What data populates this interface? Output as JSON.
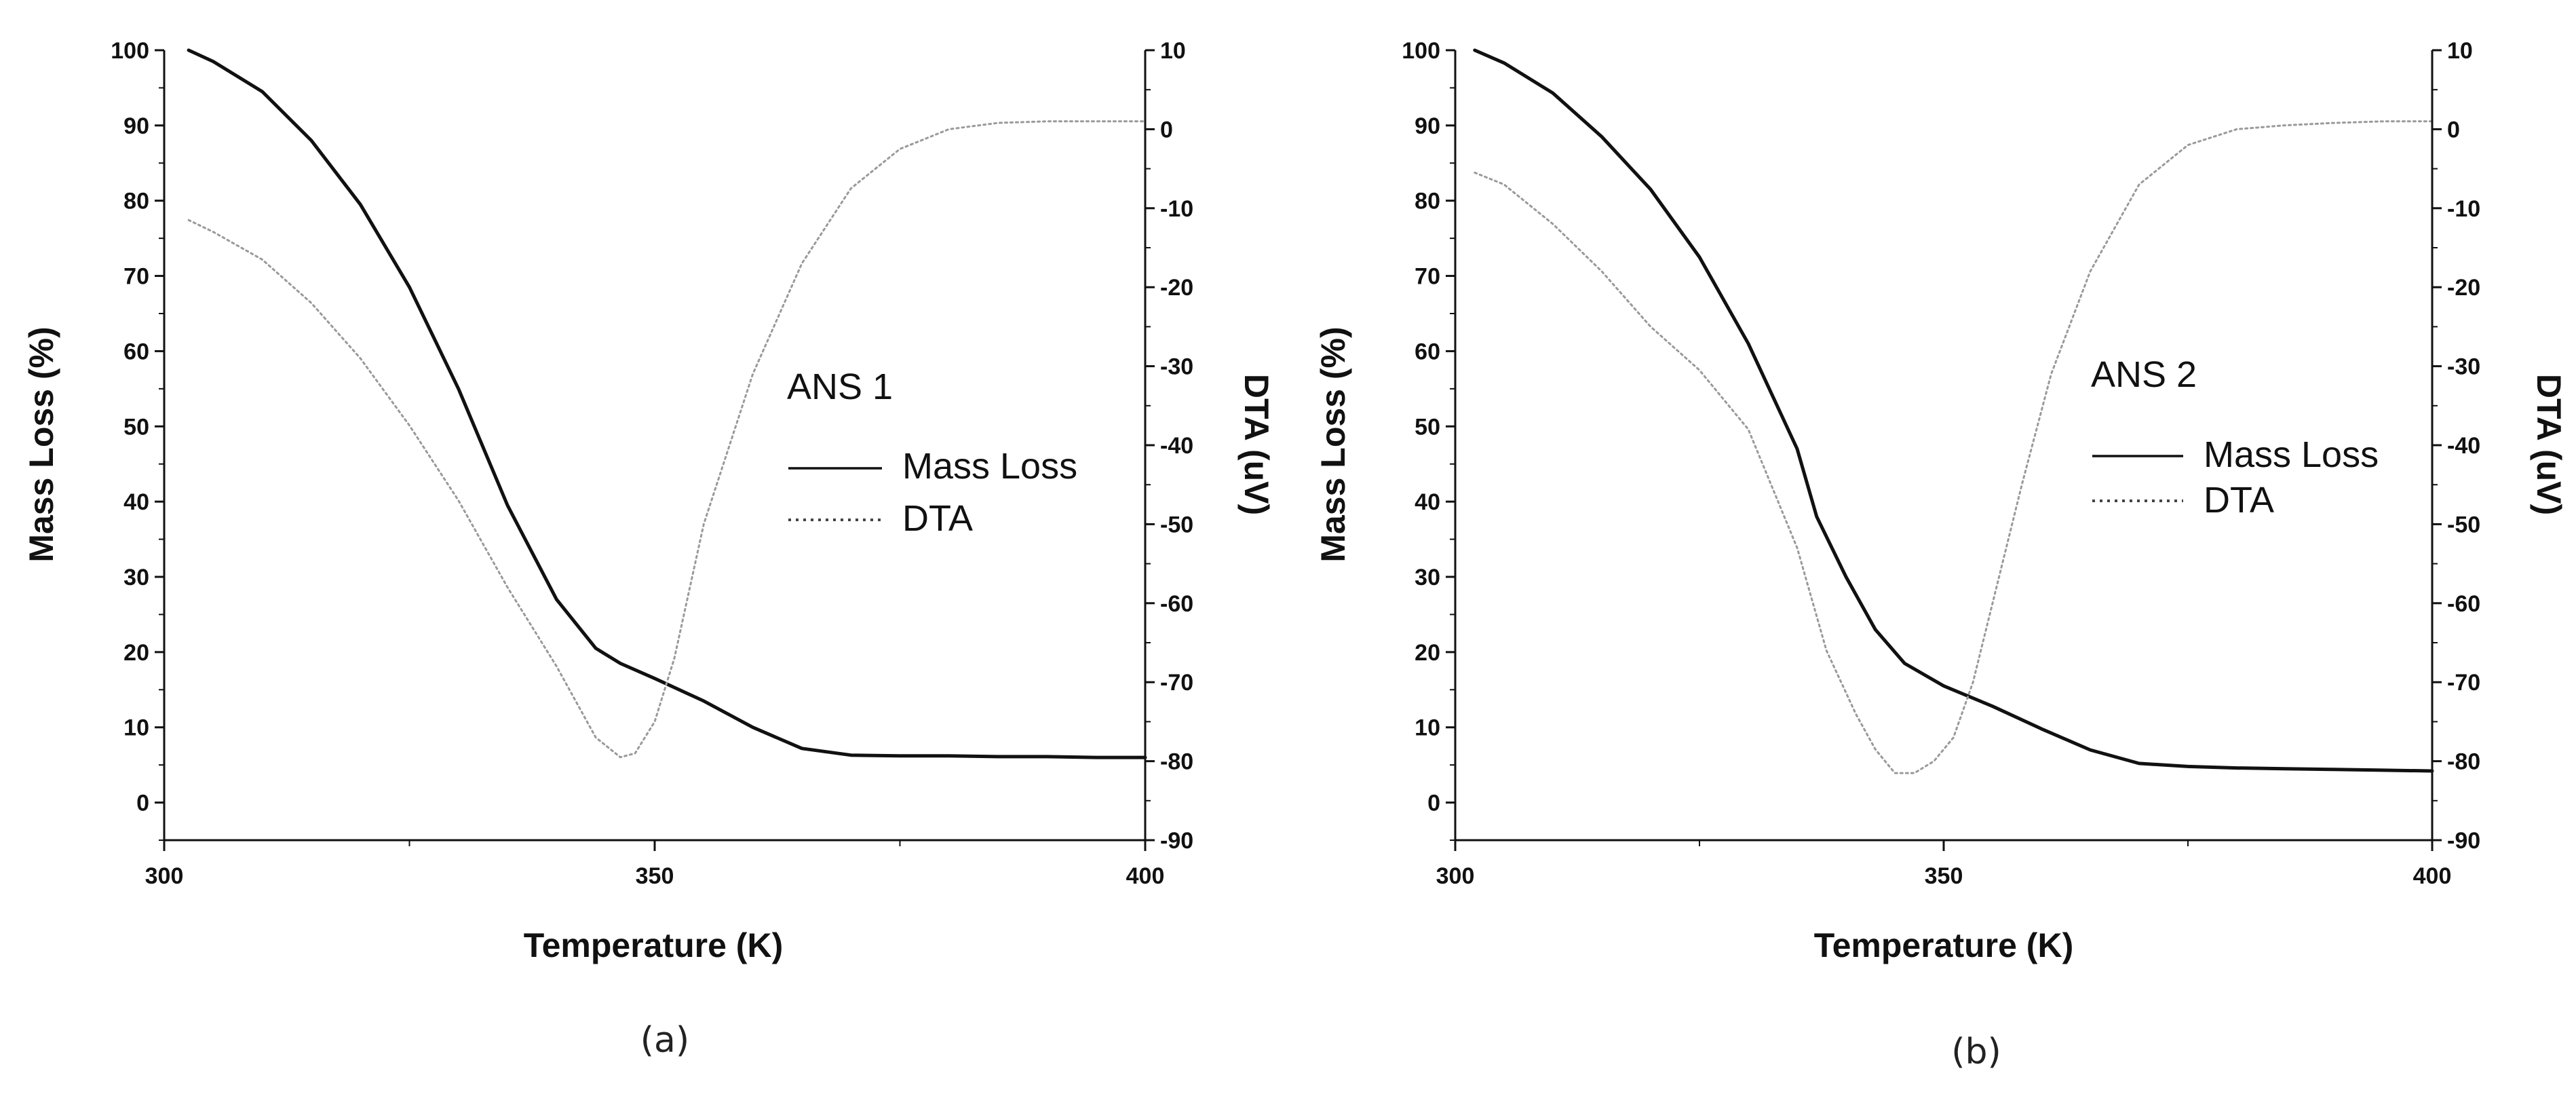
{
  "colors": {
    "mass_loss_line": "#111111",
    "dta_line": "#9a9a9a",
    "axis": "#111111",
    "background": "#ffffff"
  },
  "chart_data": [
    {
      "type": "line",
      "caption": "(a)",
      "sample_label": "ANS 1",
      "xlabel": "Temperature (K)",
      "ylabel": "Mass Loss (%)",
      "y2label": "DTA (uV)",
      "xlim": [
        300,
        400
      ],
      "ylim": [
        -5,
        100
      ],
      "y2lim": [
        -90,
        10
      ],
      "x_ticks": [
        "300",
        "350",
        "400"
      ],
      "y_ticks": [
        "0",
        "10",
        "20",
        "30",
        "40",
        "50",
        "60",
        "70",
        "80",
        "90",
        "100"
      ],
      "y2_ticks": [
        "-90",
        "-80",
        "-70",
        "-60",
        "-50",
        "-40",
        "-30",
        "-20",
        "-10",
        "0",
        "10"
      ],
      "legend": [
        {
          "name": "Mass Loss",
          "style": "solid"
        },
        {
          "name": "DTA",
          "style": "dotted"
        }
      ],
      "series": [
        {
          "name": "Mass Loss",
          "axis": "left",
          "x": [
            302.5,
            305,
            310,
            315,
            320,
            325,
            330,
            335,
            340,
            344,
            346.5,
            350,
            355,
            360,
            365,
            370,
            375,
            380,
            385,
            390,
            395,
            400
          ],
          "values": [
            100,
            98.5,
            94.5,
            88,
            79.5,
            68.5,
            55,
            39.5,
            27,
            20.5,
            18.5,
            16.5,
            13.5,
            10,
            7.2,
            6.3,
            6.2,
            6.2,
            6.1,
            6.1,
            6,
            6
          ]
        },
        {
          "name": "DTA",
          "axis": "right",
          "x": [
            302.5,
            305,
            310,
            315,
            320,
            325,
            330,
            335,
            340,
            344,
            346.5,
            348,
            350,
            352,
            355,
            360,
            365,
            370,
            375,
            380,
            385,
            390,
            395,
            400
          ],
          "values": [
            -11.5,
            -13,
            -16.5,
            -22,
            -29,
            -37.5,
            -47,
            -58,
            -68,
            -77,
            -79.5,
            -79,
            -75,
            -67,
            -50,
            -31,
            -17,
            -7.5,
            -2.5,
            0,
            0.8,
            1,
            1,
            1
          ]
        }
      ]
    },
    {
      "type": "line",
      "caption": "(b)",
      "sample_label": "ANS 2",
      "xlabel": "Temperature (K)",
      "ylabel": "Mass Loss (%)",
      "y2label": "DTA (uV)",
      "xlim": [
        300,
        400
      ],
      "ylim": [
        -5,
        100
      ],
      "y2lim": [
        -90,
        10
      ],
      "x_ticks": [
        "300",
        "350",
        "400"
      ],
      "y_ticks": [
        "0",
        "10",
        "20",
        "30",
        "40",
        "50",
        "60",
        "70",
        "80",
        "90",
        "100"
      ],
      "y2_ticks": [
        "-90",
        "-80",
        "-70",
        "-60",
        "-50",
        "-40",
        "-30",
        "-20",
        "-10",
        "0",
        "10"
      ],
      "legend": [
        {
          "name": "Mass Loss",
          "style": "solid"
        },
        {
          "name": "DTA",
          "style": "dotted"
        }
      ],
      "series": [
        {
          "name": "Mass Loss",
          "axis": "left",
          "x": [
            302,
            305,
            310,
            315,
            320,
            325,
            330,
            335,
            337,
            340,
            343,
            346,
            350,
            355,
            360,
            365,
            370,
            375,
            380,
            385,
            390,
            395,
            400
          ],
          "values": [
            100,
            98.3,
            94.3,
            88.5,
            81.5,
            72.5,
            61,
            47,
            38,
            30,
            23,
            18.5,
            15.5,
            12.8,
            9.8,
            7,
            5.2,
            4.8,
            4.6,
            4.5,
            4.4,
            4.3,
            4.2
          ]
        },
        {
          "name": "DTA",
          "axis": "right",
          "x": [
            302,
            305,
            310,
            315,
            320,
            325,
            330,
            335,
            338,
            341,
            343,
            345,
            347,
            349,
            351,
            353,
            355,
            358,
            361,
            365,
            370,
            375,
            380,
            385,
            390,
            395,
            400
          ],
          "values": [
            -5.5,
            -7,
            -12,
            -18,
            -25,
            -30.5,
            -38,
            -53,
            -66,
            -74,
            -78.5,
            -81.5,
            -81.5,
            -80,
            -77,
            -70,
            -60,
            -45,
            -31,
            -18,
            -7,
            -2,
            0,
            0.5,
            0.8,
            1,
            1
          ]
        }
      ]
    }
  ]
}
